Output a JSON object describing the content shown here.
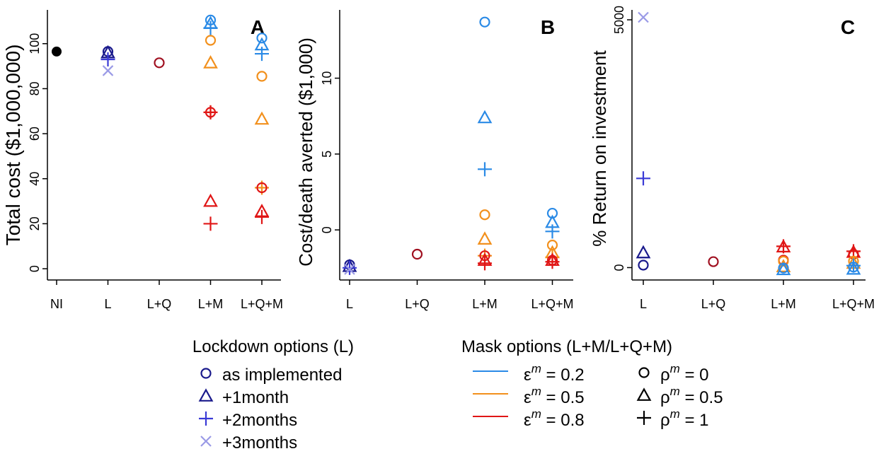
{
  "chart_data": [
    {
      "panel": "A",
      "type": "scatter",
      "ylabel": "Total cost ($1,000,000)",
      "ylim": [
        -5,
        115
      ],
      "yticks": [
        0,
        20,
        40,
        60,
        80,
        100
      ],
      "categories": [
        "NI",
        "L",
        "L+Q",
        "L+M",
        "L+Q+M"
      ],
      "points": [
        {
          "x": "NI",
          "y": 96.5,
          "color": "black",
          "shape": "filled-circle"
        },
        {
          "x": "L",
          "y": 96.5,
          "color": "navy",
          "shape": "circle"
        },
        {
          "x": "L",
          "y": 96.0,
          "color": "navy",
          "shape": "triangle"
        },
        {
          "x": "L",
          "y": 93.0,
          "color": "blue",
          "shape": "plus"
        },
        {
          "x": "L",
          "y": 88.0,
          "color": "lavender",
          "shape": "cross"
        },
        {
          "x": "L+Q",
          "y": 91.5,
          "color": "darkred",
          "shape": "circle"
        },
        {
          "x": "L+M",
          "y": 110.5,
          "color": "e02",
          "shape": "circle"
        },
        {
          "x": "L+M",
          "y": 109.0,
          "color": "e02",
          "shape": "triangle"
        },
        {
          "x": "L+M",
          "y": 107.0,
          "color": "e02",
          "shape": "plus"
        },
        {
          "x": "L+M",
          "y": 101.5,
          "color": "e05",
          "shape": "circle"
        },
        {
          "x": "L+M",
          "y": 91.5,
          "color": "e05",
          "shape": "triangle"
        },
        {
          "x": "L+M",
          "y": 69.5,
          "color": "e05",
          "shape": "plus"
        },
        {
          "x": "L+M",
          "y": 69.5,
          "color": "e08",
          "shape": "circle"
        },
        {
          "x": "L+M",
          "y": 69.5,
          "color": "e08",
          "shape": "plus"
        },
        {
          "x": "L+M",
          "y": 30.0,
          "color": "e08",
          "shape": "triangle"
        },
        {
          "x": "L+M",
          "y": 20.0,
          "color": "e08",
          "shape": "plus"
        },
        {
          "x": "L+Q+M",
          "y": 102.5,
          "color": "e02",
          "shape": "circle"
        },
        {
          "x": "L+Q+M",
          "y": 99.5,
          "color": "e02",
          "shape": "triangle"
        },
        {
          "x": "L+Q+M",
          "y": 95.5,
          "color": "e02",
          "shape": "plus"
        },
        {
          "x": "L+Q+M",
          "y": 85.5,
          "color": "e05",
          "shape": "circle"
        },
        {
          "x": "L+Q+M",
          "y": 66.5,
          "color": "e05",
          "shape": "triangle"
        },
        {
          "x": "L+Q+M",
          "y": 36.0,
          "color": "e05",
          "shape": "plus"
        },
        {
          "x": "L+Q+M",
          "y": 36.0,
          "color": "e08",
          "shape": "circle"
        },
        {
          "x": "L+Q+M",
          "y": 25.5,
          "color": "e08",
          "shape": "triangle"
        },
        {
          "x": "L+Q+M",
          "y": 23.0,
          "color": "e08",
          "shape": "plus"
        }
      ]
    },
    {
      "panel": "B",
      "type": "scatter",
      "ylabel": "Cost/death averted ($1,000)",
      "ylim": [
        -3.3,
        14.5
      ],
      "yticks": [
        0,
        5,
        10
      ],
      "categories": [
        "L",
        "L+Q",
        "L+M",
        "L+Q+M"
      ],
      "points": [
        {
          "x": "L",
          "y": -2.3,
          "color": "navy",
          "shape": "circle"
        },
        {
          "x": "L",
          "y": -2.4,
          "color": "navy",
          "shape": "triangle"
        },
        {
          "x": "L",
          "y": -2.5,
          "color": "blue",
          "shape": "plus"
        },
        {
          "x": "L",
          "y": -2.6,
          "color": "lavender",
          "shape": "cross"
        },
        {
          "x": "L+Q",
          "y": -1.6,
          "color": "darkred",
          "shape": "circle"
        },
        {
          "x": "L+M",
          "y": 13.7,
          "color": "e02",
          "shape": "circle"
        },
        {
          "x": "L+M",
          "y": 7.4,
          "color": "e02",
          "shape": "triangle"
        },
        {
          "x": "L+M",
          "y": 4.0,
          "color": "e02",
          "shape": "plus"
        },
        {
          "x": "L+M",
          "y": 1.0,
          "color": "e05",
          "shape": "circle"
        },
        {
          "x": "L+M",
          "y": -0.6,
          "color": "e05",
          "shape": "triangle"
        },
        {
          "x": "L+M",
          "y": -1.7,
          "color": "e05",
          "shape": "plus"
        },
        {
          "x": "L+M",
          "y": -1.7,
          "color": "e08",
          "shape": "circle"
        },
        {
          "x": "L+M",
          "y": -2.0,
          "color": "e08",
          "shape": "triangle"
        },
        {
          "x": "L+M",
          "y": -2.2,
          "color": "e08",
          "shape": "plus"
        },
        {
          "x": "L+Q+M",
          "y": 1.1,
          "color": "e02",
          "shape": "circle"
        },
        {
          "x": "L+Q+M",
          "y": 0.5,
          "color": "e02",
          "shape": "triangle"
        },
        {
          "x": "L+Q+M",
          "y": -0.1,
          "color": "e02",
          "shape": "plus"
        },
        {
          "x": "L+Q+M",
          "y": -1.0,
          "color": "e05",
          "shape": "circle"
        },
        {
          "x": "L+Q+M",
          "y": -1.5,
          "color": "e05",
          "shape": "triangle"
        },
        {
          "x": "L+Q+M",
          "y": -1.8,
          "color": "e05",
          "shape": "plus"
        },
        {
          "x": "L+Q+M",
          "y": -2.0,
          "color": "e08",
          "shape": "circle"
        },
        {
          "x": "L+Q+M",
          "y": -2.0,
          "color": "e08",
          "shape": "triangle"
        },
        {
          "x": "L+Q+M",
          "y": -2.1,
          "color": "e08",
          "shape": "plus"
        }
      ]
    },
    {
      "panel": "C",
      "type": "scatter",
      "ylabel": "% Return on investment",
      "ylim": [
        -250,
        5200
      ],
      "yticks": [
        0,
        5000
      ],
      "categories": [
        "L",
        "L+Q",
        "L+M",
        "L+Q+M"
      ],
      "points": [
        {
          "x": "L",
          "y": 5050,
          "color": "lavender",
          "shape": "cross"
        },
        {
          "x": "L",
          "y": 1800,
          "color": "blue",
          "shape": "plus"
        },
        {
          "x": "L",
          "y": 300,
          "color": "navy",
          "shape": "triangle"
        },
        {
          "x": "L",
          "y": 50,
          "color": "navy",
          "shape": "circle"
        },
        {
          "x": "L+Q",
          "y": 120,
          "color": "darkred",
          "shape": "circle"
        },
        {
          "x": "L+M",
          "y": 430,
          "color": "e08",
          "shape": "plus"
        },
        {
          "x": "L+M",
          "y": 420,
          "color": "e08",
          "shape": "triangle"
        },
        {
          "x": "L+M",
          "y": 150,
          "color": "e08",
          "shape": "circle"
        },
        {
          "x": "L+M",
          "y": 130,
          "color": "e05",
          "shape": "circle"
        },
        {
          "x": "L+M",
          "y": 20,
          "color": "e05",
          "shape": "triangle"
        },
        {
          "x": "L+M",
          "y": -10,
          "color": "e02",
          "shape": "circle"
        },
        {
          "x": "L+M",
          "y": -40,
          "color": "e02",
          "shape": "triangle"
        },
        {
          "x": "L+Q+M",
          "y": 330,
          "color": "e08",
          "shape": "plus"
        },
        {
          "x": "L+Q+M",
          "y": 310,
          "color": "e08",
          "shape": "triangle"
        },
        {
          "x": "L+Q+M",
          "y": 270,
          "color": "e08",
          "shape": "circle"
        },
        {
          "x": "L+Q+M",
          "y": 130,
          "color": "e05",
          "shape": "circle"
        },
        {
          "x": "L+Q+M",
          "y": 90,
          "color": "e05",
          "shape": "triangle"
        },
        {
          "x": "L+Q+M",
          "y": 40,
          "color": "e02",
          "shape": "plus"
        },
        {
          "x": "L+Q+M",
          "y": 10,
          "color": "e02",
          "shape": "circle"
        },
        {
          "x": "L+Q+M",
          "y": -30,
          "color": "e02",
          "shape": "triangle"
        }
      ]
    }
  ],
  "colors": {
    "navy": "#1a1a8c",
    "blue": "#3a3ad6",
    "lavender": "#9a9ae6",
    "darkred": "#a01020",
    "e02": "#2a8ae6",
    "e05": "#f2901c",
    "e08": "#e01616",
    "black": "#000000"
  },
  "legend": {
    "lockdown_title": "Lockdown options (L)",
    "lockdown_items": [
      {
        "label": "as implemented",
        "shape": "circle",
        "color": "navy"
      },
      {
        "label": "+1month",
        "shape": "triangle",
        "color": "navy"
      },
      {
        "label": "+2months",
        "shape": "plus",
        "color": "blue"
      },
      {
        "label": "+3months",
        "shape": "cross",
        "color": "lavender"
      }
    ],
    "mask_title": "Mask options (L+M/L+Q+M)",
    "mask_eps_items": [
      {
        "symbol": "ε",
        "sup": "m",
        "value": " = 0.2",
        "color": "e02"
      },
      {
        "symbol": "ε",
        "sup": "m",
        "value": " = 0.5",
        "color": "e05"
      },
      {
        "symbol": "ε",
        "sup": "m",
        "value": " = 0.8",
        "color": "e08"
      }
    ],
    "mask_rho_items": [
      {
        "symbol": "ρ",
        "sup": "m",
        "value": " = 0",
        "shape": "circle"
      },
      {
        "symbol": "ρ",
        "sup": "m",
        "value": " = 0.5",
        "shape": "triangle"
      },
      {
        "symbol": "ρ",
        "sup": "m",
        "value": " = 1",
        "shape": "plus"
      }
    ]
  }
}
